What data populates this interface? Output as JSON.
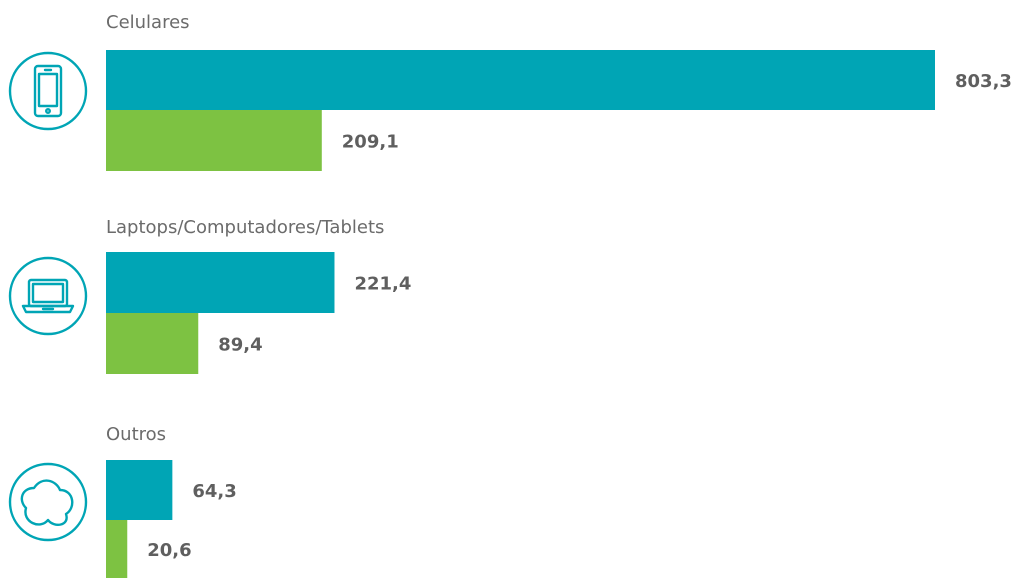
{
  "colors": {
    "series_1": "#00a5b5",
    "series_2": "#7dc242",
    "icon": "#00a5b5",
    "label_text": "#6b6b6b",
    "value_text": "#5f5f5f"
  },
  "chart_data": {
    "type": "bar",
    "orientation": "horizontal",
    "categories": [
      "Celulares",
      "Laptops/Computadores/Tablets",
      "Outros"
    ],
    "category_icons": [
      "mobile-phone-icon",
      "laptop-icon",
      "blob-icon"
    ],
    "series": [
      {
        "values": [
          803.3,
          221.4,
          64.3
        ],
        "labels": [
          "803,3",
          "221,4",
          "64,3"
        ]
      },
      {
        "values": [
          209.1,
          89.4,
          20.6
        ],
        "labels": [
          "209,1",
          "89,4",
          "20,6"
        ]
      }
    ],
    "title": "",
    "xlabel": "",
    "ylabel": "",
    "grid": false,
    "legend": "none"
  }
}
